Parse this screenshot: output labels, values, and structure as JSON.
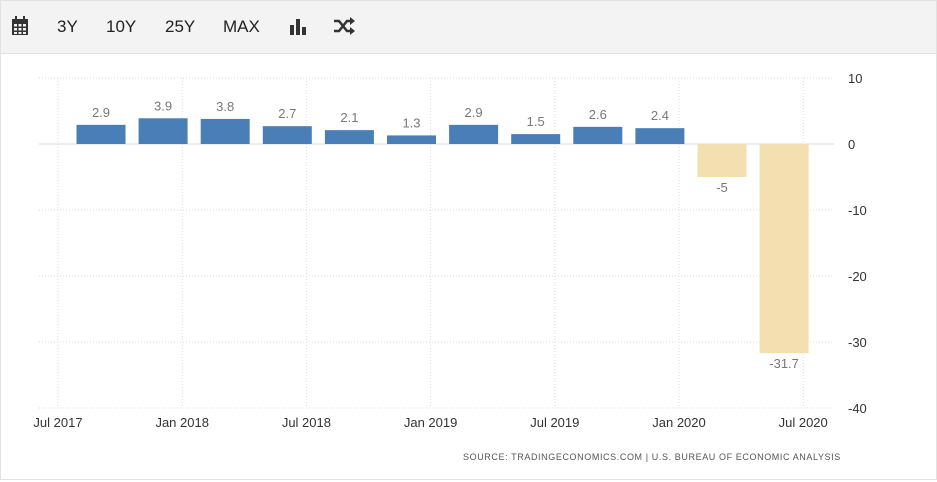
{
  "toolbar": {
    "calendar_icon": "calendar-icon",
    "ranges": [
      "3Y",
      "10Y",
      "25Y",
      "MAX"
    ],
    "chart_type_icon": "bar-chart-icon",
    "compare_icon": "shuffle-icon"
  },
  "colors": {
    "positive": "#4a7eb6",
    "negative": "#f4dfb1",
    "grid": "#dcdcdc"
  },
  "source": "SOURCE: TRADINGECONOMICS.COM  |  U.S. BUREAU OF ECONOMIC ANALYSIS",
  "chart_data": {
    "type": "bar",
    "title": "",
    "xlabel": "",
    "ylabel": "",
    "ylim": [
      -40,
      10
    ],
    "yticks": [
      10,
      0,
      -10,
      -20,
      -30,
      -40
    ],
    "categories": [
      "Q3 2017",
      "Q4 2017",
      "Q1 2018",
      "Q2 2018",
      "Q3 2018",
      "Q4 2018",
      "Q1 2019",
      "Q2 2019",
      "Q3 2019",
      "Q4 2019",
      "Q1 2020",
      "Q2 2020"
    ],
    "values": [
      2.9,
      3.9,
      3.8,
      2.7,
      2.1,
      1.3,
      2.9,
      1.5,
      2.6,
      2.4,
      -5,
      -31.7
    ],
    "value_labels": [
      "2.9",
      "3.9",
      "3.8",
      "2.7",
      "2.1",
      "1.3",
      "2.9",
      "1.5",
      "2.6",
      "2.4",
      "-5",
      "-31.7"
    ],
    "x_tick_labels": [
      "Jul 2017",
      "Jan 2018",
      "Jul 2018",
      "Jan 2019",
      "Jul 2019",
      "Jan 2020",
      "Jul 2020"
    ],
    "grid": true
  }
}
